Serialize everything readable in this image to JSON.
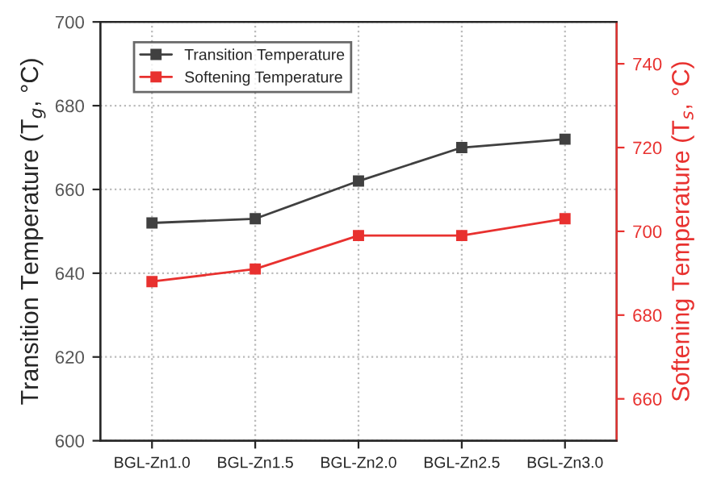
{
  "chart_data": {
    "type": "line",
    "categories": [
      "BGL-Zn1.0",
      "BGL-Zn1.5",
      "BGL-Zn2.0",
      "BGL-Zn2.5",
      "BGL-Zn3.0"
    ],
    "ylabel": "Transition Temperature (T$_{g}$, °C)",
    "y2label": "Softening Temperature (T$_{s}$, °C)",
    "series": [
      {
        "name": "Transition Temperature",
        "color": "#404040",
        "values": [
          652,
          653,
          662,
          670,
          672
        ]
      },
      {
        "name": "Softening Temperature",
        "color": "#e8312f",
        "axis": "y2",
        "values": [
          688,
          691,
          699,
          699,
          703
        ]
      }
    ],
    "ylim": [
      600,
      700
    ],
    "yticks": [
      600,
      620,
      640,
      660,
      680,
      700
    ],
    "y2lim": [
      650,
      750
    ],
    "y2ticks": [
      660,
      680,
      700,
      720,
      740
    ],
    "grid": true,
    "legend": "top left",
    "marker": "square",
    "line_style": "solid"
  }
}
